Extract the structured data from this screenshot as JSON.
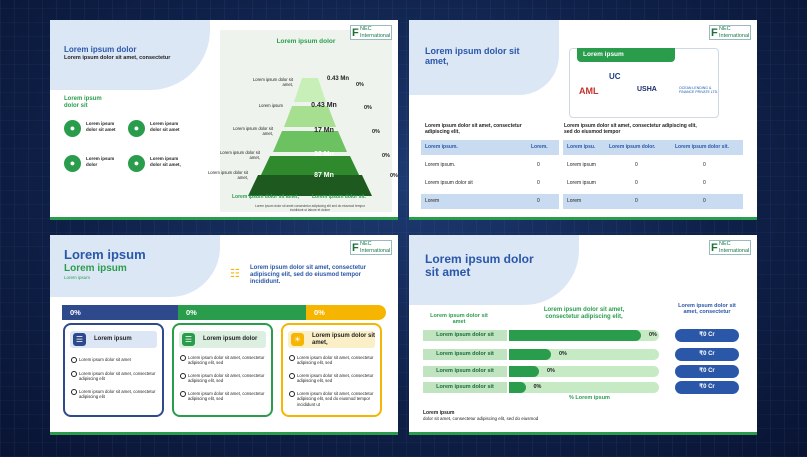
{
  "logo": {
    "mark": "F",
    "line1": "NEC",
    "line2": "International"
  },
  "slide1": {
    "title": "Lorem ipsum dolor",
    "subtitle": "Lorem ipsum dolor sit amet, consectetur",
    "section": "Lorem ipsum dolor sit",
    "items": [
      "Lorem ipsum dolor sit amet",
      "Lorem ipsum dolor sit amet",
      "Lorem ipsum dolor",
      "Lorem ipsum dolor sit amet,"
    ],
    "pyramid_title": "Lorem ipsum dolor",
    "levels": [
      {
        "value": "0.43 Mn",
        "label": "Lorem ipsum dolor sit amet,",
        "pct": "0%"
      },
      {
        "value": "0.43 Mn",
        "label": "Lorem ipsum",
        "pct": "0%"
      },
      {
        "value": "17 Mn",
        "label": "Lorem ipsum dolor sit amet,",
        "pct": "0%"
      },
      {
        "value": "32 Mn",
        "label": "Lorem ipsum dolor sit amet,",
        "pct": "0%"
      },
      {
        "value": "87 Mn",
        "label": "Lorem ipsum dolor sit amet,",
        "pct": "0%"
      }
    ],
    "foot_left": "Lorem ipsum dolor sit amet,",
    "foot_right": "Lorem ipsum dolor sit.",
    "note": "Lorem ipsum dolor sit amet consectetur adipiscing elit sed do eiusmod tempor incididunt ut labore et dolore"
  },
  "slide2": {
    "title": "Lorem ipsum dolor sit amet,",
    "logos_title": "Lorem ipsum",
    "logos": [
      "UC",
      "AML",
      "USHA",
      "OCEAN LENDING & FINANCE PRIVATE LTD."
    ],
    "left_caption": "Lorem ipsum dolor sit amet, consectetur adipiscing elit,",
    "right_caption": "Lorem ipsum dolor sit amet, consectetur adipiscing elit, sed do eiusmod tempor",
    "left_table": {
      "headers": [
        "Lorem ipsum.",
        "Lorem."
      ],
      "rows": [
        [
          "Lorem ipsum.",
          "0"
        ],
        [
          "Lorem ipsum dolor sit",
          "0"
        ],
        [
          "Lorem",
          "0"
        ]
      ]
    },
    "right_table": {
      "headers": [
        "Lorem ipsu.",
        "Lorem ipsum dolor.",
        "Lorem ipsum dolor sit."
      ],
      "rows": [
        [
          "Lorem ipsum",
          "0",
          "0"
        ],
        [
          "Lorem ipsum",
          "0",
          "0"
        ],
        [
          "Lorem",
          "0",
          "0"
        ]
      ]
    }
  },
  "slide3": {
    "title": "Lorem ipsum",
    "subtitle": "Lorem ipsum",
    "small": "Lorem ipsum",
    "headline": "Lorem ipsum dolor sit amet, consectetur adipiscing elit, sed do eiusmod tempor incididunt.",
    "segments": [
      "0%",
      "0%",
      "0%"
    ],
    "cards": [
      {
        "head": "Lorem ipsum",
        "bullets": [
          "Lorem ipsum dolor sit amet",
          "Lorem ipsum dolor sit amet, consectetur adipiscing elit",
          "Lorem ipsum dolor sit amet, consectetur adipiscing elit"
        ]
      },
      {
        "head": "Lorem ipsum dolor",
        "bullets": [
          "Lorem ipsum dolor sit amet, consectetur adipiscing elit, sed",
          "Lorem ipsum dolor sit amet, consectetur adipiscing elit, sed",
          "Lorem ipsum dolor sit amet, consectetur adipiscing elit, sed"
        ]
      },
      {
        "head": "Lorem ipsum dolor sit amet,",
        "bullets": [
          "Lorem ipsum dolor sit amet, consectetur adipiscing elit, sed",
          "Lorem ipsum dolor sit amet, consectetur adipiscing elit, sed",
          "Lorem ipsum dolor sit amet, consectetur adipiscing elit, sed do eiusmod tempor incididunt ut"
        ]
      }
    ]
  },
  "slide4": {
    "title": "Lorem ipsum dolor sit amet",
    "col1": "Lorem ipsum dolor sit amet",
    "col2": "Lorem ipsum dolor sit amet, consectetur adipiscing elit,",
    "col3": "Lorem ipsum dolor sit amet, consectetur",
    "rows": [
      {
        "label": "Lorem ipsum dolor sit",
        "pct": "0%",
        "fill": 0.88,
        "value": "₹0 Cr"
      },
      {
        "label": "Lorem ipsum dolor sit",
        "pct": "0%",
        "fill": 0.28,
        "value": "₹0 Cr"
      },
      {
        "label": "Lorem ipsum dolor sit",
        "pct": "0%",
        "fill": 0.2,
        "value": "₹0 Cr"
      },
      {
        "label": "Lorem ipsum dolor sit",
        "pct": "0%",
        "fill": 0.11,
        "value": "₹0 Cr"
      }
    ],
    "axis_caption": "% Lorem ipsum",
    "foot_title": "Lorem ipsum",
    "foot_text": "dolor sit amet, consectetur adipiscing elit, sed do eiusmod"
  },
  "colors": {
    "blue": "#2a57a8",
    "green": "#2a9d4d",
    "yellow": "#f5b500",
    "navy": "#2e4a8c"
  }
}
